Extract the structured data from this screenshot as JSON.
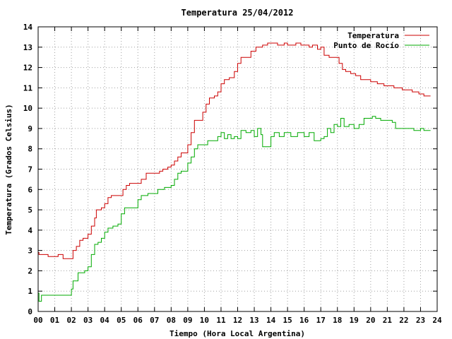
{
  "chart_data": {
    "type": "line",
    "title": "Temperatura 25/04/2012",
    "xlabel": "Tiempo (Hora Local Argentina)",
    "ylabel": "Temperatura (Grados Celsius)",
    "xlim": [
      0,
      24
    ],
    "ylim": [
      0,
      14
    ],
    "xticks": [
      "00",
      "01",
      "02",
      "03",
      "04",
      "05",
      "06",
      "07",
      "08",
      "09",
      "10",
      "11",
      "12",
      "13",
      "14",
      "15",
      "16",
      "17",
      "18",
      "19",
      "20",
      "21",
      "22",
      "23",
      "24"
    ],
    "yticks": [
      "0",
      "1",
      "2",
      "3",
      "4",
      "5",
      "6",
      "7",
      "8",
      "9",
      "10",
      "11",
      "12",
      "13",
      "14"
    ],
    "grid": true,
    "legend_position": "top-right",
    "series": [
      {
        "name": "Temperatura",
        "color": "#cc0000",
        "points": [
          [
            0,
            2.9
          ],
          [
            0.05,
            2.8
          ],
          [
            0.6,
            2.7
          ],
          [
            1.2,
            2.8
          ],
          [
            1.5,
            2.6
          ],
          [
            2.0,
            2.6
          ],
          [
            2.1,
            3.0
          ],
          [
            2.3,
            3.2
          ],
          [
            2.5,
            3.5
          ],
          [
            2.7,
            3.6
          ],
          [
            3.0,
            3.8
          ],
          [
            3.2,
            4.2
          ],
          [
            3.4,
            4.6
          ],
          [
            3.5,
            5.0
          ],
          [
            3.8,
            5.1
          ],
          [
            4.0,
            5.3
          ],
          [
            4.2,
            5.6
          ],
          [
            4.4,
            5.7
          ],
          [
            5.0,
            5.7
          ],
          [
            5.1,
            6.0
          ],
          [
            5.3,
            6.2
          ],
          [
            5.5,
            6.3
          ],
          [
            6.0,
            6.3
          ],
          [
            6.2,
            6.5
          ],
          [
            6.5,
            6.8
          ],
          [
            7.0,
            6.8
          ],
          [
            7.3,
            6.9
          ],
          [
            7.5,
            7.0
          ],
          [
            7.8,
            7.1
          ],
          [
            8.0,
            7.2
          ],
          [
            8.2,
            7.4
          ],
          [
            8.4,
            7.6
          ],
          [
            8.6,
            7.8
          ],
          [
            8.8,
            7.8
          ],
          [
            9.0,
            8.2
          ],
          [
            9.2,
            8.8
          ],
          [
            9.4,
            9.4
          ],
          [
            9.7,
            9.4
          ],
          [
            9.9,
            9.8
          ],
          [
            10.1,
            10.2
          ],
          [
            10.3,
            10.5
          ],
          [
            10.6,
            10.6
          ],
          [
            10.8,
            10.8
          ],
          [
            11.0,
            11.2
          ],
          [
            11.2,
            11.4
          ],
          [
            11.5,
            11.5
          ],
          [
            11.8,
            11.8
          ],
          [
            12.0,
            12.2
          ],
          [
            12.2,
            12.5
          ],
          [
            12.6,
            12.5
          ],
          [
            12.8,
            12.8
          ],
          [
            13.1,
            13.0
          ],
          [
            13.5,
            13.1
          ],
          [
            13.8,
            13.2
          ],
          [
            14.2,
            13.2
          ],
          [
            14.4,
            13.1
          ],
          [
            14.8,
            13.2
          ],
          [
            15.0,
            13.1
          ],
          [
            15.3,
            13.1
          ],
          [
            15.5,
            13.2
          ],
          [
            15.8,
            13.1
          ],
          [
            16.2,
            13.1
          ],
          [
            16.3,
            13.0
          ],
          [
            16.5,
            13.1
          ],
          [
            16.8,
            12.9
          ],
          [
            17.0,
            13.0
          ],
          [
            17.2,
            12.6
          ],
          [
            17.5,
            12.5
          ],
          [
            17.9,
            12.5
          ],
          [
            18.1,
            12.2
          ],
          [
            18.3,
            11.9
          ],
          [
            18.5,
            11.8
          ],
          [
            18.8,
            11.7
          ],
          [
            19.1,
            11.6
          ],
          [
            19.4,
            11.4
          ],
          [
            20.0,
            11.3
          ],
          [
            20.4,
            11.2
          ],
          [
            20.8,
            11.1
          ],
          [
            21.4,
            11.0
          ],
          [
            21.9,
            10.9
          ],
          [
            22.5,
            10.8
          ],
          [
            22.9,
            10.7
          ],
          [
            23.2,
            10.6
          ],
          [
            23.6,
            10.6
          ]
        ]
      },
      {
        "name": "Punto de Rocío",
        "color": "#00aa00",
        "points": [
          [
            0,
            0.9
          ],
          [
            0.05,
            0.5
          ],
          [
            0.2,
            0.8
          ],
          [
            0.5,
            0.8
          ],
          [
            1.0,
            0.8
          ],
          [
            1.5,
            0.8
          ],
          [
            1.9,
            0.8
          ],
          [
            2.0,
            1.1
          ],
          [
            2.1,
            1.5
          ],
          [
            2.4,
            1.9
          ],
          [
            2.8,
            2.0
          ],
          [
            3.0,
            2.2
          ],
          [
            3.2,
            2.8
          ],
          [
            3.4,
            3.3
          ],
          [
            3.6,
            3.4
          ],
          [
            3.8,
            3.6
          ],
          [
            4.0,
            3.9
          ],
          [
            4.2,
            4.1
          ],
          [
            4.5,
            4.2
          ],
          [
            4.8,
            4.3
          ],
          [
            5.0,
            4.8
          ],
          [
            5.2,
            5.1
          ],
          [
            5.5,
            5.1
          ],
          [
            5.8,
            5.1
          ],
          [
            6.0,
            5.5
          ],
          [
            6.2,
            5.7
          ],
          [
            6.6,
            5.8
          ],
          [
            7.0,
            5.8
          ],
          [
            7.2,
            6.0
          ],
          [
            7.6,
            6.1
          ],
          [
            8.0,
            6.2
          ],
          [
            8.2,
            6.5
          ],
          [
            8.4,
            6.8
          ],
          [
            8.6,
            6.9
          ],
          [
            8.9,
            6.9
          ],
          [
            9.0,
            7.3
          ],
          [
            9.2,
            7.6
          ],
          [
            9.4,
            8.0
          ],
          [
            9.6,
            8.2
          ],
          [
            10.0,
            8.2
          ],
          [
            10.2,
            8.4
          ],
          [
            10.5,
            8.4
          ],
          [
            10.8,
            8.6
          ],
          [
            11.0,
            8.8
          ],
          [
            11.2,
            8.5
          ],
          [
            11.4,
            8.7
          ],
          [
            11.6,
            8.5
          ],
          [
            11.8,
            8.6
          ],
          [
            12.0,
            8.5
          ],
          [
            12.2,
            8.9
          ],
          [
            12.5,
            8.8
          ],
          [
            12.8,
            8.9
          ],
          [
            13.0,
            8.6
          ],
          [
            13.2,
            9.0
          ],
          [
            13.4,
            8.7
          ],
          [
            13.5,
            8.1
          ],
          [
            13.8,
            8.1
          ],
          [
            14.0,
            8.6
          ],
          [
            14.2,
            8.8
          ],
          [
            14.5,
            8.6
          ],
          [
            14.8,
            8.8
          ],
          [
            15.2,
            8.6
          ],
          [
            15.6,
            8.8
          ],
          [
            16.0,
            8.6
          ],
          [
            16.3,
            8.8
          ],
          [
            16.6,
            8.4
          ],
          [
            17.0,
            8.5
          ],
          [
            17.2,
            8.6
          ],
          [
            17.4,
            9.0
          ],
          [
            17.6,
            8.8
          ],
          [
            17.8,
            9.2
          ],
          [
            18.0,
            9.1
          ],
          [
            18.2,
            9.5
          ],
          [
            18.4,
            9.1
          ],
          [
            18.7,
            9.2
          ],
          [
            19.0,
            9.0
          ],
          [
            19.3,
            9.2
          ],
          [
            19.6,
            9.5
          ],
          [
            19.9,
            9.5
          ],
          [
            20.1,
            9.6
          ],
          [
            20.3,
            9.5
          ],
          [
            20.6,
            9.4
          ],
          [
            21.0,
            9.4
          ],
          [
            21.3,
            9.3
          ],
          [
            21.5,
            9.0
          ],
          [
            21.8,
            9.0
          ],
          [
            22.2,
            9.0
          ],
          [
            22.6,
            8.9
          ],
          [
            23.0,
            9.0
          ],
          [
            23.2,
            8.9
          ],
          [
            23.6,
            8.9
          ]
        ]
      }
    ]
  }
}
